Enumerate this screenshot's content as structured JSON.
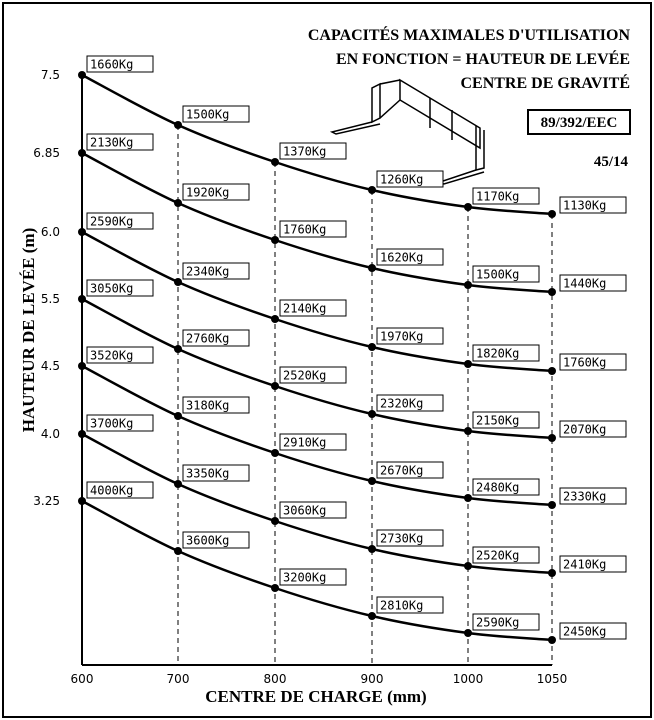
{
  "chart_data": {
    "type": "load-curves",
    "title_lines": [
      "CAPACITÉS MAXIMALES D'UTILISATION",
      "EN FONCTION = HAUTEUR DE LEVÉE",
      "CENTRE DE GRAVITÉ"
    ],
    "standard": "89/392/EEC",
    "code": "45/14",
    "y_label": "HAUTEUR DE LEVÉE (m)",
    "x_label": "CENTRE DE CHARGE (mm)",
    "categories": [
      "600",
      "700",
      "800",
      "900",
      "1000",
      "1050"
    ],
    "series": [
      {
        "name": "7.5",
        "values": [
          1660,
          1500,
          1370,
          1260,
          1170,
          1130
        ],
        "value_labels": [
          "1660Kg",
          "1500Kg",
          "1370Kg",
          "1260Kg",
          "1170Kg",
          "1130Kg"
        ]
      },
      {
        "name": "6.85",
        "values": [
          2130,
          1920,
          1760,
          1620,
          1500,
          1440
        ],
        "value_labels": [
          "2130Kg",
          "1920Kg",
          "1760Kg",
          "1620Kg",
          "1500Kg",
          "1440Kg"
        ]
      },
      {
        "name": "6.0",
        "values": [
          2590,
          2340,
          2140,
          1970,
          1820,
          1760
        ],
        "value_labels": [
          "2590Kg",
          "2340Kg",
          "2140Kg",
          "1970Kg",
          "1820Kg",
          "1760Kg"
        ]
      },
      {
        "name": "5.5",
        "values": [
          3050,
          2760,
          2520,
          2320,
          2150,
          2070
        ],
        "value_labels": [
          "3050Kg",
          "2760Kg",
          "2520Kg",
          "2320Kg",
          "2150Kg",
          "2070Kg"
        ]
      },
      {
        "name": "4.5",
        "values": [
          3520,
          3180,
          2910,
          2670,
          2480,
          2330
        ],
        "value_labels": [
          "3520Kg",
          "3180Kg",
          "2910Kg",
          "2670Kg",
          "2480Kg",
          "2330Kg"
        ]
      },
      {
        "name": "4.0",
        "values": [
          3700,
          3350,
          3060,
          2730,
          2520,
          2410
        ],
        "value_labels": [
          "3700Kg",
          "3350Kg",
          "3060Kg",
          "2730Kg",
          "2520Kg",
          "2410Kg"
        ]
      },
      {
        "name": "3.25",
        "values": [
          4000,
          3600,
          3200,
          2810,
          2590,
          2450
        ],
        "value_labels": [
          "4000Kg",
          "3600Kg",
          "3200Kg",
          "2810Kg",
          "2590Kg",
          "2450Kg"
        ]
      }
    ]
  }
}
